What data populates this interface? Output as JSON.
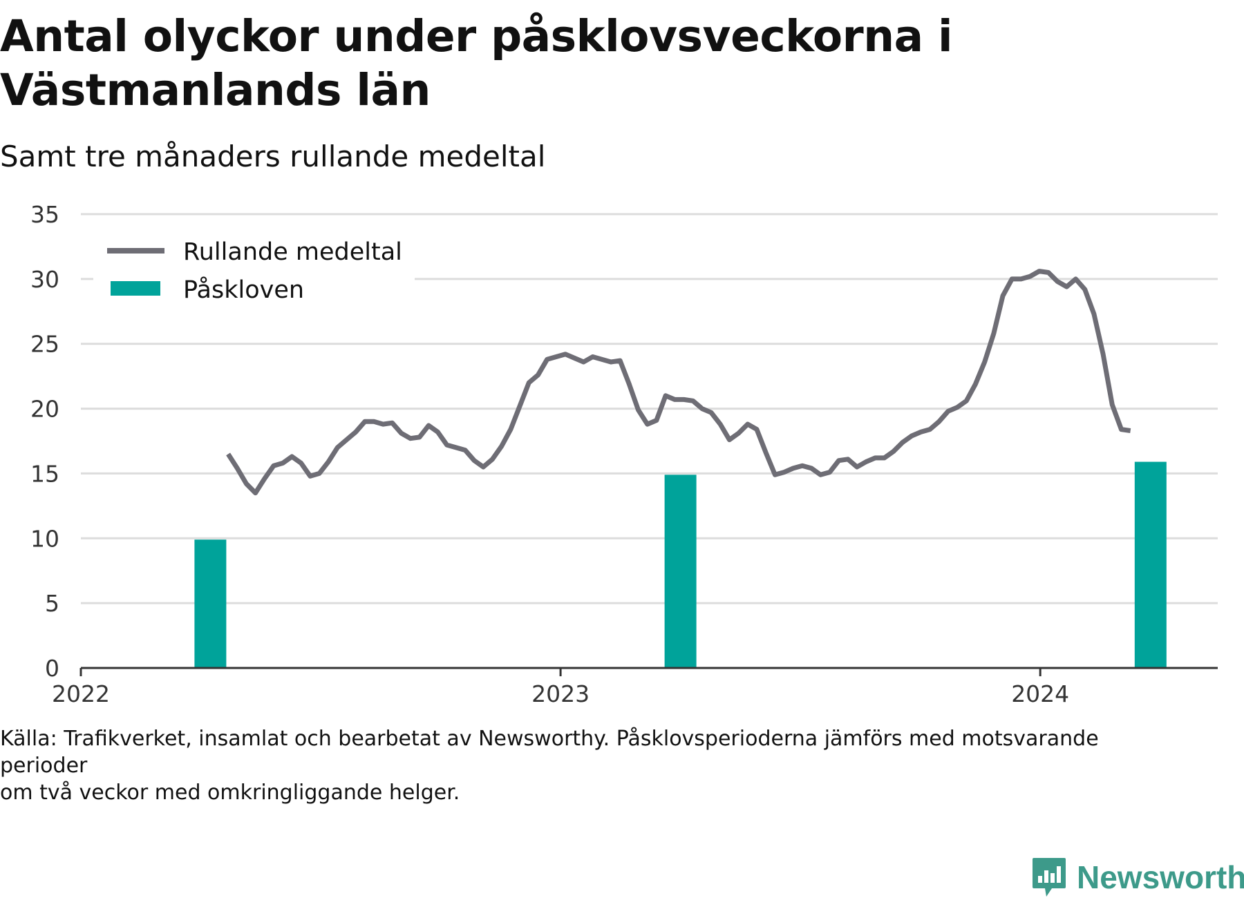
{
  "title": "Antal olyckor under påsklovsveckorna i Västmanlands län",
  "subtitle": "Samt tre månaders rullande medeltal",
  "footnote_line1": "Källa: Trafikverket, insamlat och bearbetat av Newsworthy. Påsklovsperioderna jämförs med motsvarande perioder",
  "footnote_line2": "om två veckor med omkringliggande helger.",
  "logo_text": "Newsworthy",
  "colors": {
    "line": "#6e6d75",
    "bar": "#00a39a",
    "grid": "#dcdcdc",
    "axis": "#333333",
    "logo": "#3d9a8a"
  },
  "chart_data": {
    "type": "bar+line",
    "ylim": [
      0,
      35
    ],
    "yticks": [
      0,
      5,
      10,
      15,
      20,
      25,
      30,
      35
    ],
    "xlim": [
      2022.0,
      2024.37
    ],
    "xticks": [
      2022,
      2023,
      2024
    ],
    "grid": true,
    "legend_position": "top-left",
    "legend": [
      {
        "label": "Rullande medeltal",
        "kind": "line"
      },
      {
        "label": "Påskloven",
        "kind": "bar"
      }
    ],
    "bars": {
      "name": "Påskloven",
      "x": [
        2022.27,
        2023.25,
        2024.23
      ],
      "values": [
        9.9,
        14.9,
        15.9
      ]
    },
    "line": {
      "name": "Rullande medeltal",
      "points": [
        [
          2022.307,
          16.5
        ],
        [
          2022.326,
          15.4
        ],
        [
          2022.345,
          14.2
        ],
        [
          2022.364,
          13.5
        ],
        [
          2022.383,
          14.6
        ],
        [
          2022.402,
          15.6
        ],
        [
          2022.421,
          15.8
        ],
        [
          2022.44,
          16.3
        ],
        [
          2022.459,
          15.8
        ],
        [
          2022.478,
          14.8
        ],
        [
          2022.497,
          15.0
        ],
        [
          2022.516,
          15.9
        ],
        [
          2022.535,
          17.0
        ],
        [
          2022.554,
          17.6
        ],
        [
          2022.573,
          18.2
        ],
        [
          2022.592,
          19.0
        ],
        [
          2022.611,
          19.0
        ],
        [
          2022.63,
          18.8
        ],
        [
          2022.649,
          18.9
        ],
        [
          2022.668,
          18.1
        ],
        [
          2022.687,
          17.7
        ],
        [
          2022.706,
          17.8
        ],
        [
          2022.725,
          18.7
        ],
        [
          2022.744,
          18.2
        ],
        [
          2022.763,
          17.2
        ],
        [
          2022.782,
          17.0
        ],
        [
          2022.801,
          16.8
        ],
        [
          2022.82,
          16.0
        ],
        [
          2022.839,
          15.5
        ],
        [
          2022.858,
          16.1
        ],
        [
          2022.877,
          17.1
        ],
        [
          2022.896,
          18.4
        ],
        [
          2022.915,
          20.2
        ],
        [
          2022.934,
          22.0
        ],
        [
          2022.953,
          22.6
        ],
        [
          2022.972,
          23.8
        ],
        [
          2022.991,
          24.0
        ],
        [
          2023.01,
          24.2
        ],
        [
          2023.029,
          23.9
        ],
        [
          2023.048,
          23.6
        ],
        [
          2023.067,
          24.0
        ],
        [
          2023.086,
          23.8
        ],
        [
          2023.105,
          23.6
        ],
        [
          2023.124,
          23.7
        ],
        [
          2023.143,
          21.9
        ],
        [
          2023.162,
          19.9
        ],
        [
          2023.181,
          18.8
        ],
        [
          2023.2,
          19.1
        ],
        [
          2023.219,
          21.0
        ],
        [
          2023.238,
          20.7
        ],
        [
          2023.257,
          20.7
        ],
        [
          2023.276,
          20.6
        ],
        [
          2023.295,
          20.0
        ],
        [
          2023.314,
          19.7
        ],
        [
          2023.333,
          18.8
        ],
        [
          2023.352,
          17.6
        ],
        [
          2023.371,
          18.1
        ],
        [
          2023.39,
          18.8
        ],
        [
          2023.409,
          18.4
        ],
        [
          2023.428,
          16.6
        ],
        [
          2023.447,
          14.9
        ],
        [
          2023.466,
          15.1
        ],
        [
          2023.485,
          15.4
        ],
        [
          2023.504,
          15.6
        ],
        [
          2023.523,
          15.4
        ],
        [
          2023.542,
          14.9
        ],
        [
          2023.561,
          15.1
        ],
        [
          2023.58,
          16.0
        ],
        [
          2023.599,
          16.1
        ],
        [
          2023.618,
          15.5
        ],
        [
          2023.637,
          15.9
        ],
        [
          2023.656,
          16.2
        ],
        [
          2023.675,
          16.2
        ],
        [
          2023.694,
          16.7
        ],
        [
          2023.713,
          17.4
        ],
        [
          2023.732,
          17.9
        ],
        [
          2023.751,
          18.2
        ],
        [
          2023.77,
          18.4
        ],
        [
          2023.789,
          19.0
        ],
        [
          2023.808,
          19.8
        ],
        [
          2023.827,
          20.1
        ],
        [
          2023.846,
          20.6
        ],
        [
          2023.865,
          21.9
        ],
        [
          2023.884,
          23.6
        ],
        [
          2023.903,
          25.8
        ],
        [
          2023.922,
          28.7
        ],
        [
          2023.941,
          30.0
        ],
        [
          2023.96,
          30.0
        ],
        [
          2023.979,
          30.2
        ],
        [
          2023.998,
          30.6
        ],
        [
          2024.017,
          30.5
        ],
        [
          2024.036,
          29.8
        ],
        [
          2024.055,
          29.4
        ],
        [
          2024.074,
          30.0
        ],
        [
          2024.093,
          29.2
        ],
        [
          2024.112,
          27.3
        ],
        [
          2024.131,
          24.2
        ],
        [
          2024.15,
          20.3
        ],
        [
          2024.169,
          18.4
        ],
        [
          2024.188,
          18.3
        ]
      ]
    }
  }
}
